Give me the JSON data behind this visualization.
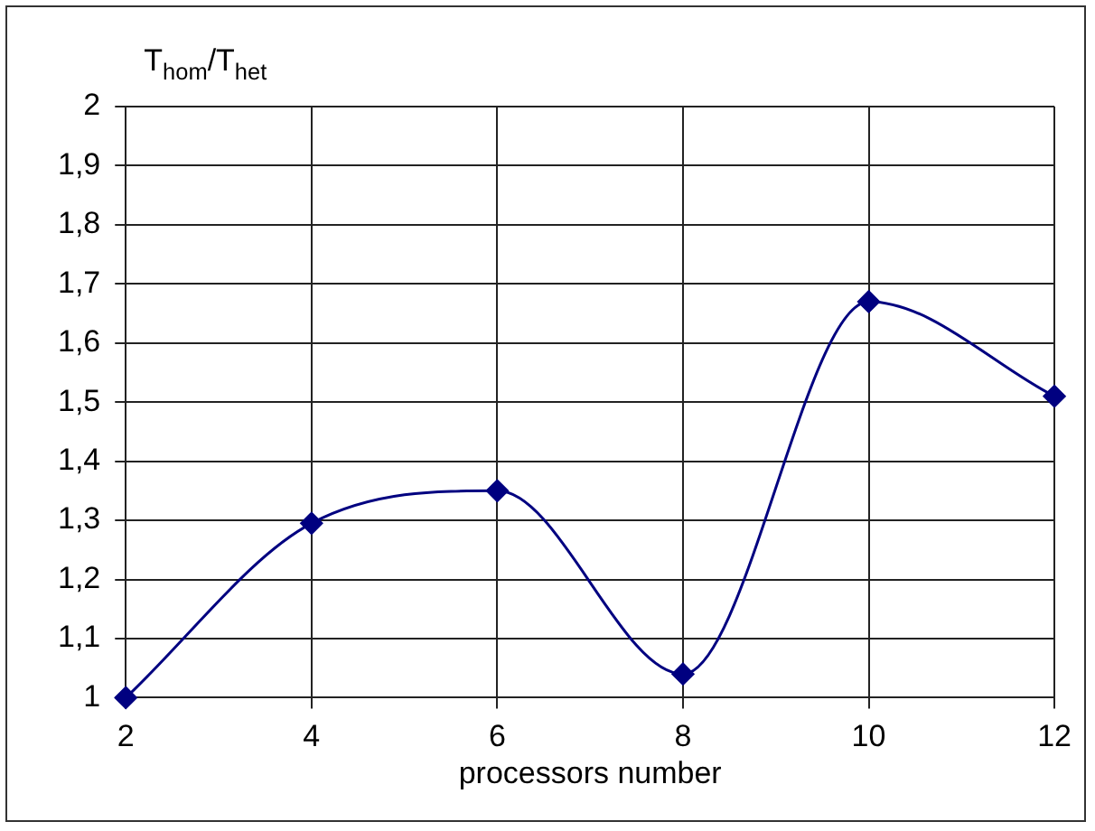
{
  "chart_data": {
    "type": "line",
    "ylabel": "T$_{hom}$/T$_{het}$",
    "xlabel": "processors number",
    "x": [
      2,
      4,
      6,
      8,
      10,
      12
    ],
    "series": [
      {
        "color": "#000080",
        "values": [
          1.0,
          1.295,
          1.35,
          1.04,
          1.67,
          1.51
        ]
      }
    ],
    "xlim": [
      2,
      12
    ],
    "xticks": [
      2,
      4,
      6,
      8,
      10,
      12
    ],
    "ylim": [
      1,
      2
    ],
    "yticks": [
      1,
      {
        "value": 1.1,
        "label": "1,1"
      },
      {
        "value": 1.2,
        "label": "1,2"
      },
      {
        "value": 1.3,
        "label": "1,3"
      },
      {
        "value": 1.4,
        "label": "1,4"
      },
      {
        "value": 1.5,
        "label": "1,5"
      },
      {
        "value": 1.6,
        "label": "1,6"
      },
      {
        "value": 1.7,
        "label": "1,7"
      },
      {
        "value": 1.8,
        "label": "1,8"
      },
      {
        "value": 1.9,
        "label": "1,9"
      },
      2
    ],
    "grid": true,
    "legend": false,
    "marker": "diamond",
    "line_style": "solid"
  }
}
